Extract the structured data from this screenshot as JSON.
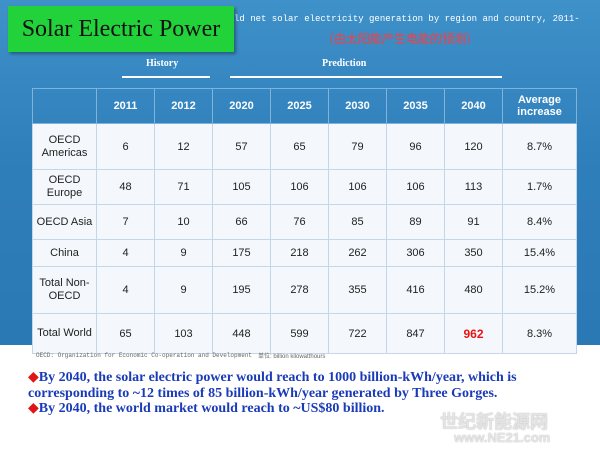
{
  "title": "Solar Electric Power",
  "caption": "ld net solar electricity generation by region and country, 2011-",
  "caption_cn": "（由太阳能产生电能的预测）",
  "groups": {
    "history": "History",
    "prediction": "Prediction"
  },
  "columns": [
    "",
    "2011",
    "2012",
    "2020",
    "2025",
    "2030",
    "2035",
    "2040",
    "Average increase"
  ],
  "rows": [
    {
      "region": "OECD Americas",
      "values": [
        "6",
        "12",
        "57",
        "65",
        "79",
        "96",
        "120"
      ],
      "avg": "8.7%"
    },
    {
      "region": "OECD Europe",
      "values": [
        "48",
        "71",
        "105",
        "106",
        "106",
        "106",
        "113"
      ],
      "avg": "1.7%"
    },
    {
      "region": "OECD Asia",
      "values": [
        "7",
        "10",
        "66",
        "76",
        "85",
        "89",
        "91"
      ],
      "avg": "8.4%"
    },
    {
      "region": "China",
      "values": [
        "4",
        "9",
        "175",
        "218",
        "262",
        "306",
        "350"
      ],
      "avg": "15.4%"
    },
    {
      "region": "Total Non-OECD",
      "values": [
        "4",
        "9",
        "195",
        "278",
        "355",
        "416",
        "480"
      ],
      "avg": "15.2%"
    },
    {
      "region": "Total World",
      "values": [
        "65",
        "103",
        "448",
        "599",
        "722",
        "847",
        "962"
      ],
      "avg": "8.3%"
    }
  ],
  "footnote": "OECD: Organization for Economic Co-operation and Development",
  "footnote_cn": "单位: billion kilowatthours",
  "bullets": [
    "By 2040, the solar electric power would reach to 1000 billion-kWh/year, which is corresponding to ~12 times of 85 billion-kWh/year generated by Three Gorges.",
    "By 2040, the world market would reach to ~US$80 billion."
  ],
  "bullet_marker": "◆",
  "watermark": "世纪新能源网",
  "watermark_url": "www.NE21.com",
  "colors": {
    "panel": "#2f7fbb",
    "title_bg": "#22d23a",
    "bullet_text": "#1a3bb8",
    "highlight": "#e81515"
  }
}
